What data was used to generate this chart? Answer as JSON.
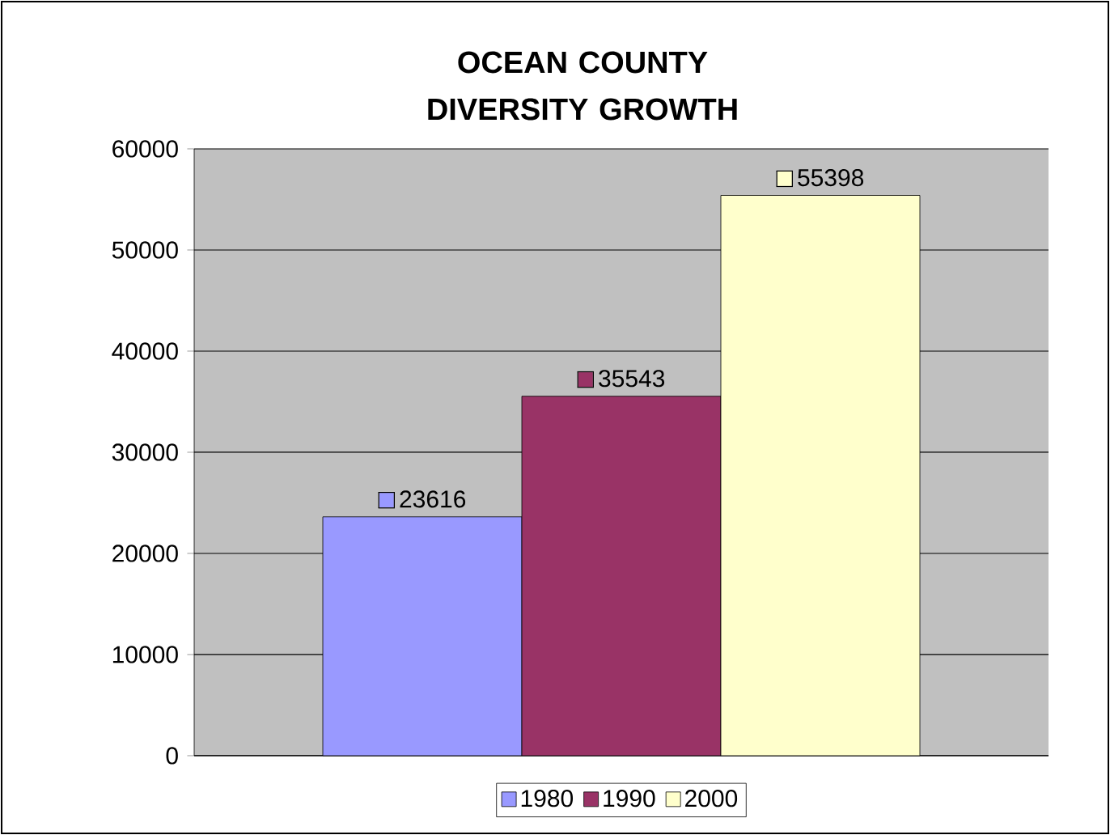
{
  "chart_data": {
    "type": "bar",
    "title": "OCEAN COUNTY DIVERSITY GROWTH",
    "categories": [
      null
    ],
    "series": [
      {
        "name": "1980",
        "color": "#9999ff",
        "values": [
          23616
        ]
      },
      {
        "name": "1990",
        "color": "#993366",
        "values": [
          35543
        ]
      },
      {
        "name": "2000",
        "color": "#ffffcc",
        "values": [
          55398
        ]
      }
    ],
    "ylim": [
      0,
      60000
    ],
    "yticks": [
      0,
      10000,
      20000,
      30000,
      40000,
      50000,
      60000
    ],
    "grid": "y",
    "legend": "bottom",
    "data_labels": true
  }
}
